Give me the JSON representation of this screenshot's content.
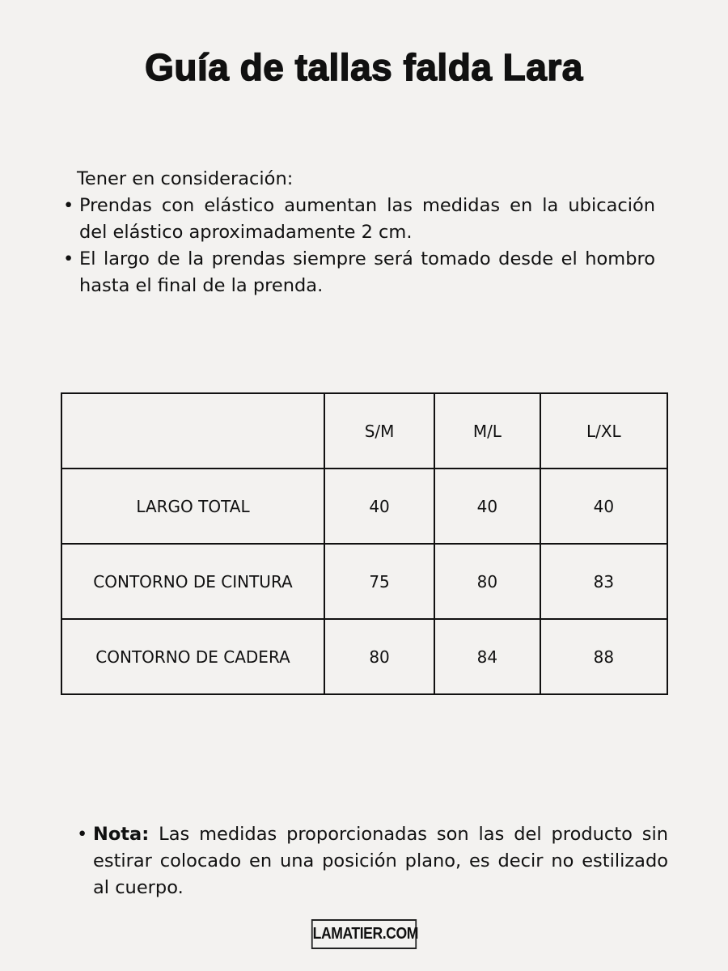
{
  "title": "Guía de tallas falda Lara",
  "intro": {
    "heading": "Tener en consideración:",
    "bullets": [
      "Prendas con elástico aumentan las medidas en la ubicación del elástico aproximadamente 2 cm.",
      "El largo de la prendas siempre será tomado desde el hombro hasta el final de la prenda."
    ]
  },
  "table": {
    "headers": [
      "",
      "S/M",
      "M/L",
      "L/XL"
    ],
    "rows": [
      {
        "label": "LARGO TOTAL",
        "values": [
          "40",
          "40",
          "40"
        ]
      },
      {
        "label": "CONTORNO DE CINTURA",
        "values": [
          "75",
          "80",
          "83"
        ]
      },
      {
        "label": "CONTORNO DE CADERA",
        "values": [
          "80",
          "84",
          "88"
        ]
      }
    ]
  },
  "note": {
    "label": "Nota:",
    "text": " Las medidas proporcionadas son las del producto sin estirar colocado en una posición plano, es decir no estilizado al cuerpo."
  },
  "footer": {
    "logo": "LAMATIER.COM"
  }
}
